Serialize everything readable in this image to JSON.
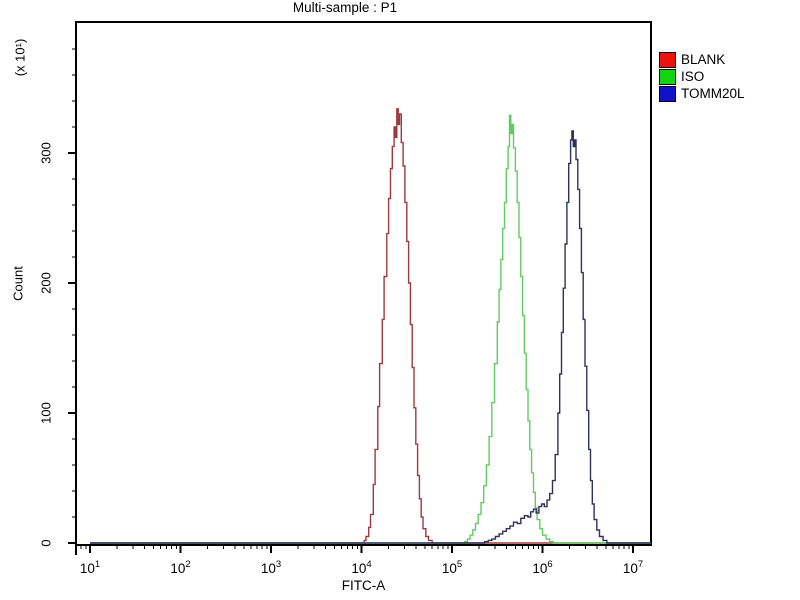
{
  "title": "Multi-sample : P1",
  "legend": [
    {
      "label": "BLANK",
      "swatch_color": "#ee1111"
    },
    {
      "label": "ISO",
      "swatch_color": "#11d511"
    },
    {
      "label": "TOMM20L",
      "swatch_color": "#1111cc"
    }
  ],
  "axes": {
    "x": {
      "label": "FITC-A",
      "scale": "log",
      "tick_exponents": [
        1,
        2,
        3,
        4,
        5,
        6,
        7
      ]
    },
    "y": {
      "label": "Count",
      "unit_label": "(x 10¹)",
      "ticks": [
        0,
        100,
        200,
        300
      ],
      "minor_step": 20,
      "max": 400
    }
  },
  "chart_data": {
    "type": "line",
    "subtype": "flow-cytometry-histogram",
    "title": "Multi-sample : P1",
    "xlabel": "FITC-A",
    "ylabel": "Count",
    "y_unit": "(x 10¹)",
    "x_scale": "log10",
    "xlim_log": [
      0.845,
      7.2
    ],
    "ylim": [
      0,
      400
    ],
    "grid": false,
    "legend_position": "right-outside",
    "series": [
      {
        "name": "BLANK",
        "color": "#9e3a3e",
        "peak_x": 24500,
        "peak_y": 334,
        "points_log_count": [
          [
            1.0,
            0
          ],
          [
            4.0,
            0
          ],
          [
            4.03,
            2
          ],
          [
            4.05,
            5
          ],
          [
            4.08,
            12
          ],
          [
            4.1,
            22
          ],
          [
            4.13,
            45
          ],
          [
            4.15,
            72
          ],
          [
            4.18,
            105
          ],
          [
            4.2,
            138
          ],
          [
            4.23,
            172
          ],
          [
            4.25,
            205
          ],
          [
            4.28,
            238
          ],
          [
            4.3,
            265
          ],
          [
            4.32,
            288
          ],
          [
            4.34,
            305
          ],
          [
            4.36,
            320
          ],
          [
            4.375,
            312
          ],
          [
            4.39,
            334
          ],
          [
            4.405,
            322
          ],
          [
            4.42,
            330
          ],
          [
            4.44,
            308
          ],
          [
            4.46,
            290
          ],
          [
            4.48,
            262
          ],
          [
            4.5,
            232
          ],
          [
            4.52,
            200
          ],
          [
            4.54,
            168
          ],
          [
            4.56,
            135
          ],
          [
            4.58,
            104
          ],
          [
            4.6,
            76
          ],
          [
            4.62,
            52
          ],
          [
            4.64,
            34
          ],
          [
            4.66,
            20
          ],
          [
            4.68,
            11
          ],
          [
            4.71,
            5
          ],
          [
            4.74,
            2
          ],
          [
            4.78,
            0
          ],
          [
            7.2,
            0
          ]
        ]
      },
      {
        "name": "ISO",
        "color": "#63cb63",
        "peak_x": 430000,
        "peak_y": 329,
        "points_log_count": [
          [
            1.0,
            0
          ],
          [
            5.1,
            0
          ],
          [
            5.14,
            1
          ],
          [
            5.17,
            3
          ],
          [
            5.2,
            6
          ],
          [
            5.23,
            10
          ],
          [
            5.26,
            15
          ],
          [
            5.29,
            22
          ],
          [
            5.32,
            31
          ],
          [
            5.35,
            44
          ],
          [
            5.38,
            60
          ],
          [
            5.41,
            82
          ],
          [
            5.44,
            108
          ],
          [
            5.47,
            138
          ],
          [
            5.5,
            170
          ],
          [
            5.52,
            195
          ],
          [
            5.54,
            218
          ],
          [
            5.56,
            242
          ],
          [
            5.58,
            262
          ],
          [
            5.6,
            288
          ],
          [
            5.62,
            305
          ],
          [
            5.635,
            329
          ],
          [
            5.65,
            315
          ],
          [
            5.665,
            322
          ],
          [
            5.68,
            304
          ],
          [
            5.7,
            286
          ],
          [
            5.72,
            262
          ],
          [
            5.74,
            235
          ],
          [
            5.76,
            205
          ],
          [
            5.78,
            175
          ],
          [
            5.8,
            146
          ],
          [
            5.82,
            118
          ],
          [
            5.84,
            94
          ],
          [
            5.86,
            72
          ],
          [
            5.88,
            54
          ],
          [
            5.9,
            39
          ],
          [
            5.92,
            27
          ],
          [
            5.94,
            18
          ],
          [
            5.97,
            11
          ],
          [
            6.0,
            6
          ],
          [
            6.04,
            3
          ],
          [
            6.08,
            1
          ],
          [
            6.12,
            0
          ],
          [
            7.2,
            0
          ]
        ]
      },
      {
        "name": "TOMM20L",
        "color": "#30305c",
        "peak_x": 2100000,
        "peak_y": 317,
        "points_log_count": [
          [
            1.0,
            0
          ],
          [
            5.32,
            0
          ],
          [
            5.36,
            1
          ],
          [
            5.4,
            2
          ],
          [
            5.44,
            3
          ],
          [
            5.48,
            5
          ],
          [
            5.52,
            7
          ],
          [
            5.56,
            9
          ],
          [
            5.6,
            11
          ],
          [
            5.64,
            13
          ],
          [
            5.68,
            16
          ],
          [
            5.72,
            15
          ],
          [
            5.76,
            19
          ],
          [
            5.8,
            21
          ],
          [
            5.84,
            20
          ],
          [
            5.87,
            24
          ],
          [
            5.9,
            26
          ],
          [
            5.93,
            23
          ],
          [
            5.96,
            28
          ],
          [
            5.99,
            30
          ],
          [
            6.02,
            28
          ],
          [
            6.05,
            33
          ],
          [
            6.08,
            38
          ],
          [
            6.11,
            48
          ],
          [
            6.14,
            68
          ],
          [
            6.17,
            100
          ],
          [
            6.19,
            130
          ],
          [
            6.21,
            162
          ],
          [
            6.23,
            196
          ],
          [
            6.25,
            230
          ],
          [
            6.27,
            262
          ],
          [
            6.29,
            292
          ],
          [
            6.31,
            310
          ],
          [
            6.325,
            317
          ],
          [
            6.34,
            305
          ],
          [
            6.355,
            310
          ],
          [
            6.37,
            295
          ],
          [
            6.39,
            272
          ],
          [
            6.41,
            242
          ],
          [
            6.43,
            208
          ],
          [
            6.45,
            172
          ],
          [
            6.47,
            136
          ],
          [
            6.49,
            102
          ],
          [
            6.51,
            72
          ],
          [
            6.53,
            48
          ],
          [
            6.55,
            30
          ],
          [
            6.57,
            18
          ],
          [
            6.6,
            10
          ],
          [
            6.63,
            5
          ],
          [
            6.67,
            2
          ],
          [
            6.71,
            0
          ],
          [
            7.2,
            0
          ]
        ]
      }
    ]
  }
}
